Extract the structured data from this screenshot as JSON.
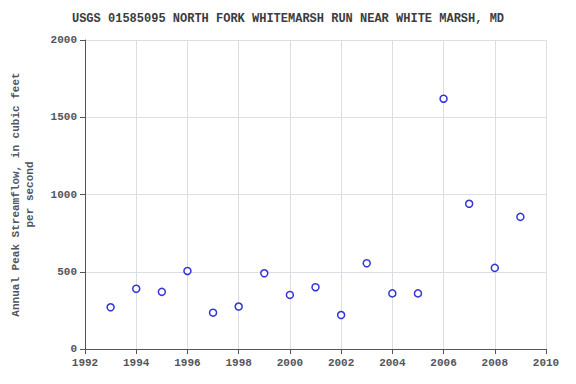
{
  "chart_data": {
    "type": "scatter",
    "title": "USGS 01585095 NORTH FORK WHITEMARSH RUN NEAR WHITE MARSH, MD",
    "ylabel": "Annual Peak Streamflow, in cubic feet\nper second",
    "x": [
      1993,
      1994,
      1995,
      1996,
      1997,
      1998,
      1999,
      2000,
      2001,
      2002,
      2003,
      2004,
      2005,
      2006,
      2007,
      2008,
      2009
    ],
    "values": [
      270,
      390,
      370,
      505,
      235,
      275,
      490,
      350,
      400,
      220,
      555,
      360,
      360,
      1620,
      940,
      525,
      855
    ],
    "xlim": [
      1992,
      2010
    ],
    "ylim": [
      0,
      2000
    ],
    "xticks": [
      1992,
      1994,
      1996,
      1998,
      2000,
      2002,
      2004,
      2006,
      2008,
      2010
    ],
    "yticks": [
      0,
      500,
      1000,
      1500,
      2000
    ],
    "color": "#0000cc",
    "marker": "circle",
    "grid": true
  }
}
